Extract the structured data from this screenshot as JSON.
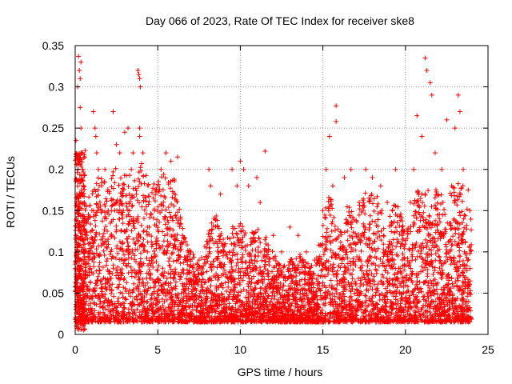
{
  "chart_data": {
    "type": "scatter",
    "title": "Day 066 of 2023, Rate Of TEC Index for receiver ske8",
    "xlabel": "GPS time / hours",
    "ylabel": "ROTI / TECUs",
    "xlim": [
      0,
      25
    ],
    "ylim": [
      0,
      0.35
    ],
    "xticks": [
      0,
      5,
      10,
      15,
      20,
      25
    ],
    "xtick_labels": [
      "0",
      "5",
      "10",
      "15",
      "20",
      "25"
    ],
    "yticks": [
      0,
      0.05,
      0.1,
      0.15,
      0.2,
      0.25,
      0.3,
      0.35
    ],
    "ytick_labels": [
      "0",
      "0.05",
      "0.1",
      "0.15",
      "0.2",
      "0.25",
      "0.3",
      "0.35"
    ],
    "grid": true,
    "marker": "+",
    "color": "#ff0000",
    "series": [
      {
        "points": [
          [
            0.05,
            0.235
          ],
          [
            0.1,
            0.17
          ],
          [
            0.15,
            0.3
          ],
          [
            0.2,
            0.337
          ],
          [
            0.25,
            0.32
          ],
          [
            0.3,
            0.31
          ],
          [
            0.3,
            0.275
          ],
          [
            0.35,
            0.33
          ],
          [
            0.35,
            0.25
          ],
          [
            0.4,
            0.22
          ],
          [
            0.45,
            0.2
          ],
          [
            0.5,
            0.18
          ],
          [
            0.55,
            0.16
          ],
          [
            0.6,
            0.14
          ],
          [
            0.7,
            0.12
          ],
          [
            0.8,
            0.1
          ],
          [
            0.9,
            0.08
          ],
          [
            1.1,
            0.27
          ],
          [
            1.2,
            0.25
          ],
          [
            1.25,
            0.24
          ],
          [
            1.3,
            0.22
          ],
          [
            1.4,
            0.2
          ],
          [
            1.6,
            0.18
          ],
          [
            1.8,
            0.2
          ],
          [
            2.0,
            0.15
          ],
          [
            2.3,
            0.27
          ],
          [
            2.5,
            0.23
          ],
          [
            2.7,
            0.22
          ],
          [
            3.0,
            0.245
          ],
          [
            3.2,
            0.25
          ],
          [
            3.4,
            0.2
          ],
          [
            3.5,
            0.22
          ],
          [
            3.8,
            0.32
          ],
          [
            3.85,
            0.315
          ],
          [
            3.9,
            0.31
          ],
          [
            3.95,
            0.3
          ],
          [
            3.9,
            0.25
          ],
          [
            3.9,
            0.24
          ],
          [
            4.1,
            0.22
          ],
          [
            4.4,
            0.18
          ],
          [
            4.8,
            0.15
          ],
          [
            5.2,
            0.2
          ],
          [
            5.5,
            0.22
          ],
          [
            5.8,
            0.21
          ],
          [
            6.2,
            0.215
          ],
          [
            6.5,
            0.12
          ],
          [
            7.0,
            0.1
          ],
          [
            7.5,
            0.09
          ],
          [
            8.1,
            0.2
          ],
          [
            8.2,
            0.18
          ],
          [
            8.8,
            0.17
          ],
          [
            9.5,
            0.2
          ],
          [
            9.8,
            0.18
          ],
          [
            10.0,
            0.21
          ],
          [
            10.2,
            0.2
          ],
          [
            10.5,
            0.18
          ],
          [
            11.0,
            0.19
          ],
          [
            11.2,
            0.16
          ],
          [
            11.5,
            0.222
          ],
          [
            12.0,
            0.12
          ],
          [
            12.5,
            0.1
          ],
          [
            13.0,
            0.13
          ],
          [
            13.5,
            0.12
          ],
          [
            14.0,
            0.1
          ],
          [
            14.5,
            0.09
          ],
          [
            15.0,
            0.15
          ],
          [
            15.2,
            0.2
          ],
          [
            15.4,
            0.24
          ],
          [
            15.6,
            0.18
          ],
          [
            15.8,
            0.258
          ],
          [
            15.8,
            0.277
          ],
          [
            16.3,
            0.19
          ],
          [
            16.7,
            0.2
          ],
          [
            17.2,
            0.16
          ],
          [
            17.6,
            0.2
          ],
          [
            18.0,
            0.19
          ],
          [
            18.5,
            0.18
          ],
          [
            18.9,
            0.16
          ],
          [
            19.2,
            0.15
          ],
          [
            19.4,
            0.2
          ],
          [
            19.8,
            0.12
          ],
          [
            20.3,
            0.16
          ],
          [
            20.5,
            0.2
          ],
          [
            20.7,
            0.265
          ],
          [
            21.0,
            0.24
          ],
          [
            21.2,
            0.335
          ],
          [
            21.3,
            0.32
          ],
          [
            21.5,
            0.305
          ],
          [
            21.6,
            0.29
          ],
          [
            21.8,
            0.22
          ],
          [
            22.2,
            0.2
          ],
          [
            22.5,
            0.26
          ],
          [
            22.8,
            0.18
          ],
          [
            23.0,
            0.25
          ],
          [
            23.2,
            0.29
          ],
          [
            23.3,
            0.27
          ],
          [
            23.5,
            0.2
          ],
          [
            23.8,
            0.175
          ],
          [
            23.9,
            0.15
          ]
        ]
      }
    ],
    "density_profile": {
      "hours": [
        0,
        0.5,
        1,
        1.5,
        2,
        2.5,
        3,
        3.5,
        4,
        4.5,
        5,
        5.5,
        6,
        6.5,
        7,
        7.5,
        8,
        8.5,
        9,
        9.5,
        10,
        10.5,
        11,
        11.5,
        12,
        12.5,
        13,
        13.5,
        14,
        14.5,
        15,
        15.5,
        16,
        16.5,
        17,
        17.5,
        18,
        18.5,
        19,
        19.5,
        20,
        20.5,
        21,
        21.5,
        22,
        22.5,
        23,
        23.5,
        24
      ],
      "upper_envelope": [
        0.2,
        0.16,
        0.17,
        0.2,
        0.19,
        0.21,
        0.2,
        0.19,
        0.21,
        0.18,
        0.19,
        0.2,
        0.19,
        0.13,
        0.1,
        0.09,
        0.12,
        0.15,
        0.12,
        0.13,
        0.14,
        0.12,
        0.13,
        0.12,
        0.1,
        0.08,
        0.09,
        0.1,
        0.09,
        0.08,
        0.14,
        0.18,
        0.12,
        0.16,
        0.15,
        0.17,
        0.18,
        0.16,
        0.14,
        0.17,
        0.12,
        0.16,
        0.19,
        0.17,
        0.18,
        0.16,
        0.19,
        0.18,
        0.14
      ],
      "floor": 0.015
    }
  }
}
